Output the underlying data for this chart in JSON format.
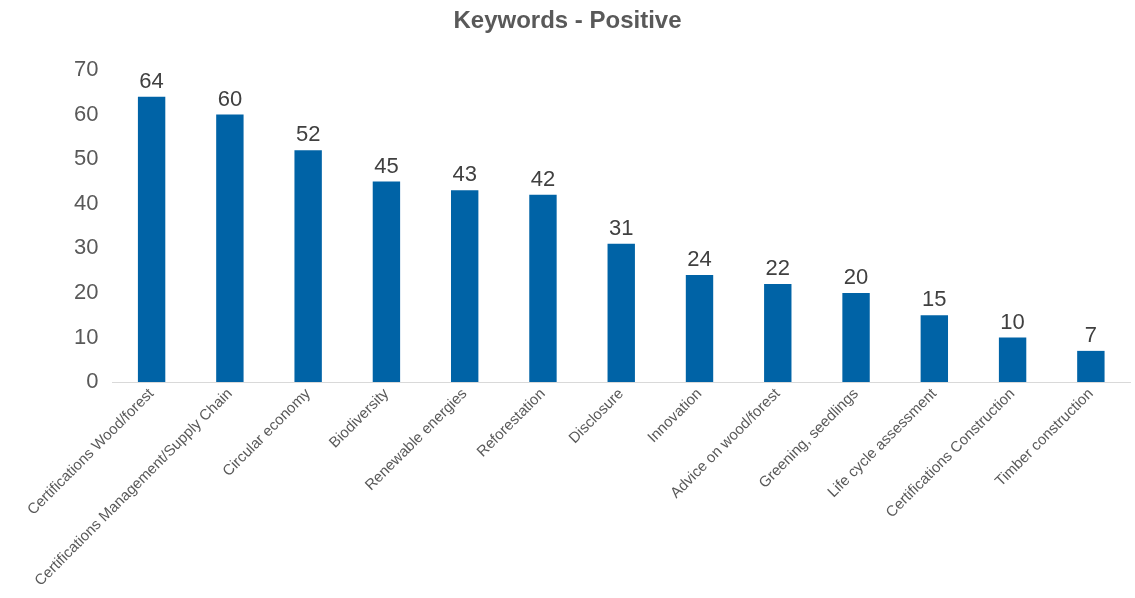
{
  "chart_data": {
    "type": "bar",
    "title": "Keywords - Positive",
    "categories": [
      "Certifications Wood/forest",
      "Certifications Management/Supply Chain",
      "Circular economy",
      "Biodiversity",
      "Renewable energies",
      "Reforestation",
      "Disclosure",
      "Innovation",
      "Advice on wood/forest",
      "Greening, seedlings",
      "Life cycle assessment",
      "Certifications Construction",
      "Timber construction"
    ],
    "values": [
      64,
      60,
      52,
      45,
      43,
      42,
      31,
      24,
      22,
      20,
      15,
      10,
      7
    ],
    "color": "#0063a6",
    "ylim": [
      0,
      70
    ],
    "yticks": [
      0,
      10,
      20,
      30,
      40,
      50,
      60,
      70
    ],
    "grid": false,
    "data_labels": true
  }
}
